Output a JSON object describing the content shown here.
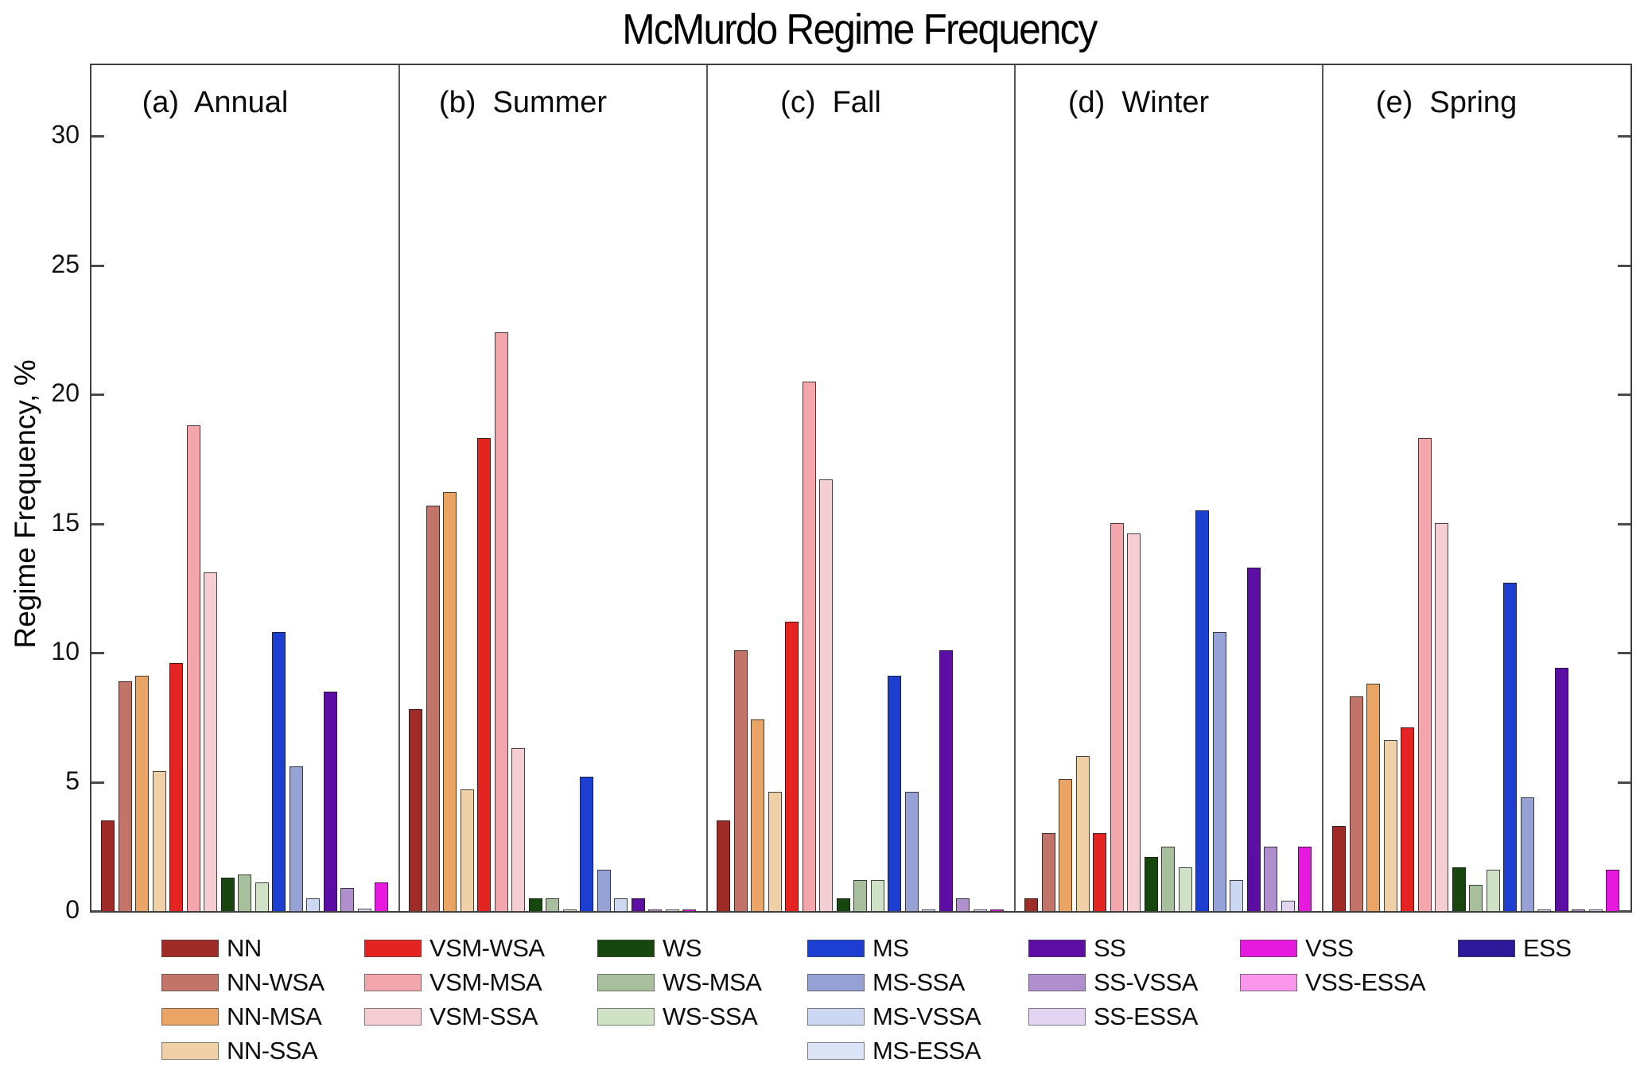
{
  "title": "McMurdo Regime Frequency",
  "chart_data": {
    "type": "bar",
    "title": "McMurdo Regime Frequency",
    "ylabel": "Regime Frequency, %",
    "xlabel": "",
    "ylim": [
      0,
      32.7
    ],
    "yticks": [
      0,
      5,
      10,
      15,
      20,
      25,
      30
    ],
    "grid": false,
    "legend_position": "bottom",
    "regimes": [
      {
        "name": "NN",
        "color": "#9e2b25"
      },
      {
        "name": "NN-WSA",
        "color": "#c27468"
      },
      {
        "name": "NN-MSA",
        "color": "#eaa565"
      },
      {
        "name": "NN-SSA",
        "color": "#f0d0a6"
      },
      {
        "name": "VSM-WSA",
        "color": "#e42421"
      },
      {
        "name": "VSM-MSA",
        "color": "#f3a6ab"
      },
      {
        "name": "VSM-SSA",
        "color": "#f4ced2"
      },
      {
        "name": "WS",
        "color": "#17470f"
      },
      {
        "name": "WS-MSA",
        "color": "#a8bf9d"
      },
      {
        "name": "WS-SSA",
        "color": "#cfe2c6"
      },
      {
        "name": "MS",
        "color": "#1c3ed1"
      },
      {
        "name": "MS-SSA",
        "color": "#96a2d5"
      },
      {
        "name": "MS-VSSA",
        "color": "#ccd7f2"
      },
      {
        "name": "MS-ESSA",
        "color": "#dce4f7"
      },
      {
        "name": "SS",
        "color": "#5c0da4"
      },
      {
        "name": "SS-VSSA",
        "color": "#af8fcd"
      },
      {
        "name": "SS-ESSA",
        "color": "#e3d5f1"
      },
      {
        "name": "VSS",
        "color": "#e51ade"
      },
      {
        "name": "VSS-ESSA",
        "color": "#fa95ec"
      },
      {
        "name": "ESS",
        "color": "#2e189a"
      }
    ],
    "panels": [
      {
        "id": "a",
        "label": "(a)  Annual",
        "season": "Annual",
        "values": [
          3.5,
          8.9,
          9.1,
          5.4,
          9.6,
          18.8,
          13.1,
          1.3,
          1.4,
          1.1,
          10.8,
          5.6,
          0.5,
          0,
          8.5,
          0.9,
          0.1,
          1.1,
          0,
          0
        ]
      },
      {
        "id": "b",
        "label": "(b)  Summer",
        "season": "Summer",
        "values": [
          7.8,
          15.7,
          16.2,
          4.7,
          18.3,
          22.4,
          6.3,
          0.5,
          0.5,
          0.05,
          5.2,
          1.6,
          0.5,
          0,
          0.5,
          0.05,
          0.05,
          0.05,
          0,
          0
        ]
      },
      {
        "id": "c",
        "label": "(c)  Fall",
        "season": "Fall",
        "values": [
          3.5,
          10.1,
          7.4,
          4.6,
          11.2,
          20.5,
          16.7,
          0.5,
          1.2,
          1.2,
          9.1,
          4.6,
          0.05,
          0,
          10.1,
          0.5,
          0.05,
          0.05,
          0,
          0
        ]
      },
      {
        "id": "d",
        "label": "(d)  Winter",
        "season": "Winter",
        "values": [
          0.5,
          3.0,
          5.1,
          6.0,
          3.0,
          15.0,
          14.6,
          2.1,
          2.5,
          1.7,
          15.5,
          10.8,
          1.2,
          0,
          13.3,
          2.5,
          0.4,
          2.5,
          0,
          0
        ]
      },
      {
        "id": "e",
        "label": "(e)  Spring",
        "season": "Spring",
        "values": [
          3.3,
          8.3,
          8.8,
          6.6,
          7.1,
          18.3,
          15.0,
          1.7,
          1.0,
          1.6,
          12.7,
          4.4,
          0.05,
          0,
          9.4,
          0.05,
          0.05,
          1.6,
          0,
          0
        ]
      }
    ]
  },
  "legend": {
    "columns": [
      {
        "regimes": [
          0,
          1,
          2,
          3
        ]
      },
      {
        "regimes": [
          4,
          5,
          6
        ]
      },
      {
        "regimes": [
          7,
          8,
          9
        ]
      },
      {
        "regimes": [
          10,
          11,
          12,
          13
        ]
      },
      {
        "regimes": [
          14,
          15,
          16
        ]
      },
      {
        "regimes": [
          17,
          18
        ]
      },
      {
        "regimes": [
          19
        ]
      }
    ]
  }
}
